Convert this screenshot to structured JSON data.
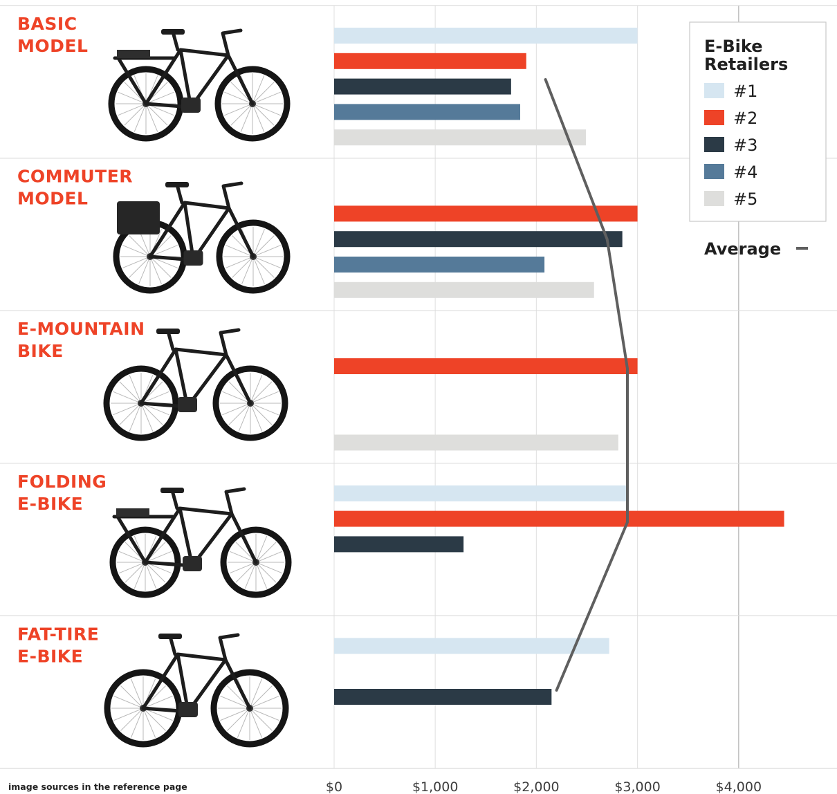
{
  "chart_data": {
    "type": "bar",
    "orientation": "horizontal",
    "title": "",
    "xlabel": "",
    "ylabel": "",
    "xlim": [
      0,
      4700
    ],
    "x_ticks": [
      0,
      1000,
      2000,
      3000,
      4000
    ],
    "x_tick_labels": [
      "$0",
      "$1,000",
      "$2,000",
      "$3,000",
      "$4,000"
    ],
    "categories": [
      {
        "name": "basic-model",
        "label_lines": [
          "BASIC",
          "MODEL"
        ]
      },
      {
        "name": "commuter-model",
        "label_lines": [
          "COMMUTER",
          "MODEL"
        ]
      },
      {
        "name": "e-mountain-bike",
        "label_lines": [
          "E-MOUNTAIN",
          "BIKE"
        ]
      },
      {
        "name": "folding-e-bike",
        "label_lines": [
          "FOLDING",
          "E-BIKE"
        ]
      },
      {
        "name": "fat-tire-e-bike",
        "label_lines": [
          "FAT-TIRE",
          "E-BIKE"
        ]
      }
    ],
    "series": [
      {
        "name": "#1",
        "color": "#d6e6f1",
        "values": [
          3000,
          null,
          null,
          2900,
          2720
        ]
      },
      {
        "name": "#2",
        "color": "#ee4327",
        "values": [
          1900,
          3000,
          3000,
          4450,
          null
        ]
      },
      {
        "name": "#3",
        "color": "#2b3a46",
        "values": [
          1750,
          2850,
          null,
          1280,
          2150
        ]
      },
      {
        "name": "#4",
        "color": "#557a99",
        "values": [
          1840,
          2080,
          null,
          null,
          null
        ]
      },
      {
        "name": "#5",
        "color": "#dededc",
        "values": [
          2490,
          2570,
          2810,
          null,
          null
        ]
      }
    ],
    "average": {
      "label": "Average",
      "color": "#5f5f5f",
      "values": [
        2090,
        2700,
        2900,
        2900,
        2200
      ]
    },
    "legend": {
      "title_lines": [
        "E-Bike",
        "Retailers"
      ],
      "position": "top-right"
    },
    "grid": true
  },
  "footnote": "image sources in the reference page"
}
